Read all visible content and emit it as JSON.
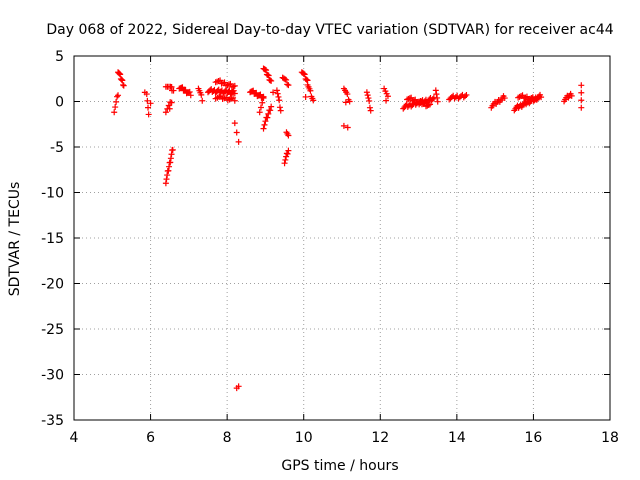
{
  "chart_data": {
    "type": "scatter",
    "title": "Day 068 of 2022, Sidereal Day-to-day VTEC variation (SDTVAR) for receiver ac44",
    "xlabel": "GPS time / hours",
    "ylabel": "SDTVAR / TECUs",
    "xlim": [
      4,
      18
    ],
    "ylim": [
      -35,
      5
    ],
    "xticks": [
      4,
      6,
      8,
      10,
      12,
      14,
      16,
      18
    ],
    "yticks": [
      5,
      0,
      -5,
      -10,
      -15,
      -20,
      -25,
      -30,
      -35
    ],
    "grid": true,
    "marker": "+",
    "color": "#ff0000",
    "series": [
      {
        "name": "SDTVAR",
        "segments": [
          {
            "from": [
              5.05,
              -1.0
            ],
            "to": [
              5.15,
              0.8
            ],
            "n": 5
          },
          {
            "from": [
              5.15,
              3.4
            ],
            "to": [
              5.3,
              1.8
            ],
            "n": 9
          },
          {
            "from": [
              5.9,
              1.0
            ],
            "to": [
              5.95,
              -1.6
            ],
            "n": 4
          },
          {
            "from": [
              6.4,
              -1.0
            ],
            "to": [
              6.55,
              0.0
            ],
            "n": 5
          },
          {
            "from": [
              6.4,
              1.8
            ],
            "to": [
              6.6,
              1.2
            ],
            "n": 6
          },
          {
            "from": [
              6.4,
              -8.8
            ],
            "to": [
              6.58,
              -5.2
            ],
            "n": 12
          },
          {
            "from": [
              6.75,
              1.6
            ],
            "to": [
              7.05,
              0.8
            ],
            "n": 12
          },
          {
            "from": [
              7.25,
              1.6
            ],
            "to": [
              7.35,
              0.2
            ],
            "n": 5
          },
          {
            "from": [
              7.5,
              1.2
            ],
            "to": [
              8.2,
              1.0
            ],
            "n": 26
          },
          {
            "from": [
              7.7,
              2.3
            ],
            "to": [
              8.2,
              1.6
            ],
            "n": 14
          },
          {
            "from": [
              7.7,
              0.5
            ],
            "to": [
              8.2,
              0.2
            ],
            "n": 12
          },
          {
            "from": [
              8.2,
              -2.2
            ],
            "to": [
              8.3,
              -4.5
            ],
            "n": 3
          },
          {
            "from": [
              8.6,
              1.2
            ],
            "to": [
              8.95,
              0.4
            ],
            "n": 14
          },
          {
            "from": [
              8.85,
              -1.0
            ],
            "to": [
              8.95,
              0.2
            ],
            "n": 4
          },
          {
            "from": [
              8.95,
              3.8
            ],
            "to": [
              9.15,
              2.2
            ],
            "n": 10
          },
          {
            "from": [
              8.95,
              -2.8
            ],
            "to": [
              9.15,
              -0.5
            ],
            "n": 9
          },
          {
            "from": [
              9.3,
              1.4
            ],
            "to": [
              9.4,
              -1.0
            ],
            "n": 6
          },
          {
            "from": [
              9.45,
              2.8
            ],
            "to": [
              9.6,
              1.8
            ],
            "n": 6
          },
          {
            "from": [
              9.5,
              -6.6
            ],
            "to": [
              9.6,
              -5.4
            ],
            "n": 6
          },
          {
            "from": [
              9.55,
              -3.2
            ],
            "to": [
              9.6,
              -3.8
            ],
            "n": 3
          },
          {
            "from": [
              9.95,
              3.4
            ],
            "to": [
              10.1,
              2.2
            ],
            "n": 7
          },
          {
            "from": [
              10.1,
              2.0
            ],
            "to": [
              10.25,
              0.0
            ],
            "n": 7
          },
          {
            "from": [
              11.05,
              1.6
            ],
            "to": [
              11.2,
              0.0
            ],
            "n": 6
          },
          {
            "from": [
              11.05,
              -2.5
            ],
            "to": [
              11.15,
              -2.8
            ],
            "n": 2
          },
          {
            "from": [
              11.65,
              1.2
            ],
            "to": [
              11.75,
              -1.0
            ],
            "n": 6
          },
          {
            "from": [
              12.1,
              1.6
            ],
            "to": [
              12.2,
              0.4
            ],
            "n": 4
          },
          {
            "from": [
              12.6,
              -0.6
            ],
            "to": [
              13.4,
              0.3
            ],
            "n": 28
          },
          {
            "from": [
              12.7,
              0.4
            ],
            "to": [
              13.3,
              -0.5
            ],
            "n": 18
          },
          {
            "from": [
              13.45,
              1.4
            ],
            "to": [
              13.5,
              -0.2
            ],
            "n": 4
          },
          {
            "from": [
              13.8,
              0.4
            ],
            "to": [
              14.25,
              0.6
            ],
            "n": 14
          },
          {
            "from": [
              14.9,
              -0.5
            ],
            "to": [
              15.25,
              0.5
            ],
            "n": 12
          },
          {
            "from": [
              15.5,
              -0.8
            ],
            "to": [
              16.2,
              0.6
            ],
            "n": 26
          },
          {
            "from": [
              15.6,
              0.6
            ],
            "to": [
              16.1,
              0.2
            ],
            "n": 14
          },
          {
            "from": [
              16.8,
              0.2
            ],
            "to": [
              17.0,
              0.8
            ],
            "n": 8
          },
          {
            "from": [
              17.25,
              -0.5
            ],
            "to": [
              17.25,
              1.6
            ],
            "n": 4
          }
        ],
        "points": [
          [
            6.0,
            -0.2
          ],
          [
            5.85,
            1.0
          ],
          [
            6.55,
            1.6
          ],
          [
            6.5,
            -0.8
          ],
          [
            8.25,
            -31.5
          ],
          [
            8.3,
            -31.3
          ],
          [
            8.05,
            1.2
          ],
          [
            8.1,
            0.8
          ],
          [
            9.2,
            1.0
          ],
          [
            10.05,
            0.5
          ],
          [
            11.1,
            -0.1
          ],
          [
            12.15,
            0.1
          ]
        ]
      }
    ]
  }
}
